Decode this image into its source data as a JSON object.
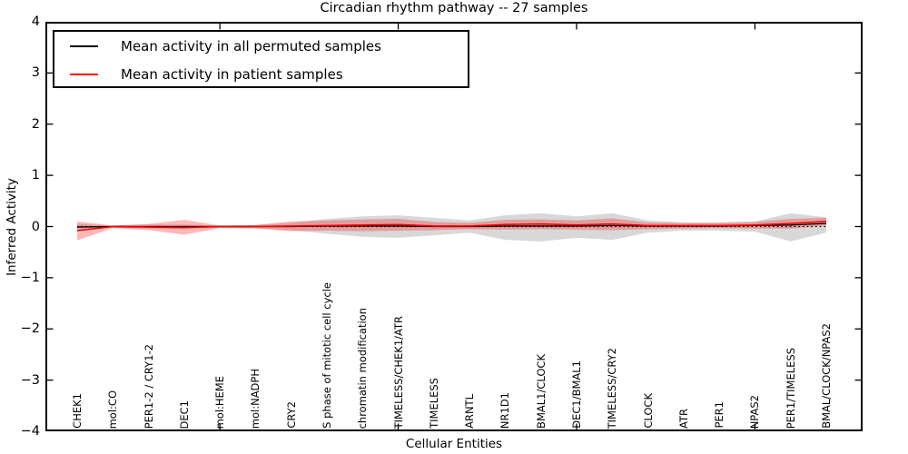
{
  "title": "Circadian rhythm pathway -- 27 samples",
  "axes": {
    "ylabel": "Inferred Activity",
    "xlabel": "Cellular Entities",
    "ytick_labels": [
      "4",
      "3",
      "2",
      "1",
      "0",
      "−1",
      "−2",
      "−3",
      "−4"
    ],
    "xtick_positions": [
      5,
      10,
      15,
      20
    ]
  },
  "legend": [
    {
      "label": "Mean activity in all permuted samples",
      "color": "#000000"
    },
    {
      "label": "Mean activity in patient samples",
      "color": "#ff0000"
    }
  ],
  "chart_data": {
    "type": "line",
    "title": "Circadian rhythm pathway -- 27 samples",
    "xlabel": "Cellular Entities",
    "ylabel": "Inferred Activity",
    "ylim": [
      -4,
      4
    ],
    "yticks": [
      4,
      3,
      2,
      1,
      0,
      -1,
      -2,
      -3,
      -4
    ],
    "xticks": [
      5,
      10,
      15,
      20
    ],
    "legend_position": "upper left",
    "grid": false,
    "zero_line": 0,
    "categories": [
      "CHEK1",
      "mol:CO",
      "PER1-2 / CRY1-2",
      "DEC1",
      "mol:HEME",
      "mol:NADPH",
      "CRY2",
      "S phase of mitotic cell cycle",
      "chromatin modification",
      "TIMELESS/CHEK1/ATR",
      "TIMELESS",
      "ARNTL",
      "NR1D1",
      "BMAL1/CLOCK",
      "DEC1/BMAL1",
      "TIMELESS/CRY2",
      "CLOCK",
      "ATR",
      "PER1",
      "NPAS2",
      "PER1/TIMELESS",
      "BMAL/CLOCK/NPAS2"
    ],
    "series": [
      {
        "name": "Mean activity in all permuted samples",
        "color": "#000000",
        "values": [
          -0.01,
          0.0,
          0.0,
          0.0,
          0.0,
          0.0,
          0.0,
          0.01,
          0.01,
          0.01,
          0.0,
          0.0,
          0.01,
          0.01,
          0.01,
          0.02,
          0.01,
          0.01,
          0.01,
          0.02,
          0.03,
          0.06
        ]
      },
      {
        "name": "Mean activity in patient samples",
        "color": "#ff0000",
        "values": [
          -0.08,
          0.0,
          -0.01,
          -0.02,
          0.0,
          0.0,
          0.01,
          0.02,
          0.03,
          0.04,
          0.01,
          0.01,
          0.04,
          0.05,
          0.03,
          0.05,
          0.02,
          0.02,
          0.02,
          0.03,
          0.06,
          0.1
        ]
      }
    ],
    "bands": [
      {
        "name": "permuted-std-band",
        "color": "#999999",
        "opacity": 0.38,
        "upper": [
          0.05,
          0.02,
          0.04,
          0.04,
          0.02,
          0.03,
          0.07,
          0.15,
          0.2,
          0.22,
          0.17,
          0.12,
          0.22,
          0.26,
          0.2,
          0.26,
          0.12,
          0.08,
          0.08,
          0.1,
          0.26,
          0.18
        ],
        "lower": [
          -0.07,
          -0.02,
          -0.04,
          -0.05,
          -0.02,
          -0.03,
          -0.07,
          -0.14,
          -0.2,
          -0.22,
          -0.17,
          -0.12,
          -0.26,
          -0.29,
          -0.22,
          -0.26,
          -0.12,
          -0.08,
          -0.08,
          -0.1,
          -0.29,
          -0.12
        ]
      },
      {
        "name": "patient-std-band",
        "color": "#ff0000",
        "opacity": 0.28,
        "upper": [
          0.1,
          0.02,
          0.05,
          0.13,
          0.02,
          0.03,
          0.1,
          0.12,
          0.14,
          0.15,
          0.09,
          0.07,
          0.13,
          0.14,
          0.12,
          0.16,
          0.08,
          0.07,
          0.07,
          0.09,
          0.15,
          0.17
        ],
        "lower": [
          -0.27,
          -0.03,
          -0.07,
          -0.16,
          -0.03,
          -0.04,
          -0.09,
          -0.08,
          -0.09,
          -0.08,
          -0.07,
          -0.05,
          -0.06,
          -0.05,
          -0.06,
          -0.07,
          -0.05,
          -0.04,
          -0.03,
          -0.04,
          -0.04,
          0.02
        ]
      }
    ]
  }
}
